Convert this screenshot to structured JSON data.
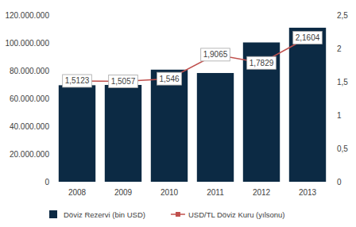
{
  "chart_data": {
    "type": "bar",
    "categories": [
      "2008",
      "2009",
      "2010",
      "2011",
      "2012",
      "2013"
    ],
    "series": [
      {
        "name": "Döviz Rezervi (bin USD)",
        "type": "bar",
        "color": "#0c2a44",
        "values": [
          69500000,
          69700000,
          80700000,
          78300000,
          100300000,
          110900000
        ]
      },
      {
        "name": "USD/TL Döviz Kuru (yılsonu)",
        "type": "line",
        "axis": "y2",
        "color": "#c0504d",
        "marker": "square",
        "data_labels": true,
        "values": [
          1.5123,
          1.5057,
          1.546,
          1.9065,
          1.7829,
          2.1604
        ],
        "value_labels": [
          "1,5123",
          "1,5057",
          "1,546",
          "1,9065",
          "1,7829",
          "2,1604"
        ]
      }
    ],
    "ylim": [
      0,
      120000000
    ],
    "yticks": [
      0,
      {
        "value": 20000000,
        "label": "20.000.000"
      },
      {
        "value": 40000000,
        "label": "40.000.000"
      },
      {
        "value": 60000000,
        "label": "60.000.000"
      },
      {
        "value": 80000000,
        "label": "80.000.000"
      },
      {
        "value": 100000000,
        "label": "100.000.000"
      },
      {
        "value": 120000000,
        "label": "120.000.000"
      }
    ],
    "y2lim": [
      0,
      2.5
    ],
    "y2ticks": [
      0,
      {
        "value": 0.5,
        "label": "0,5"
      },
      1,
      {
        "value": 1.5,
        "label": "1,5"
      },
      2,
      {
        "value": 2.5,
        "label": "2,5"
      }
    ],
    "grid": false,
    "legend": "bottom"
  }
}
